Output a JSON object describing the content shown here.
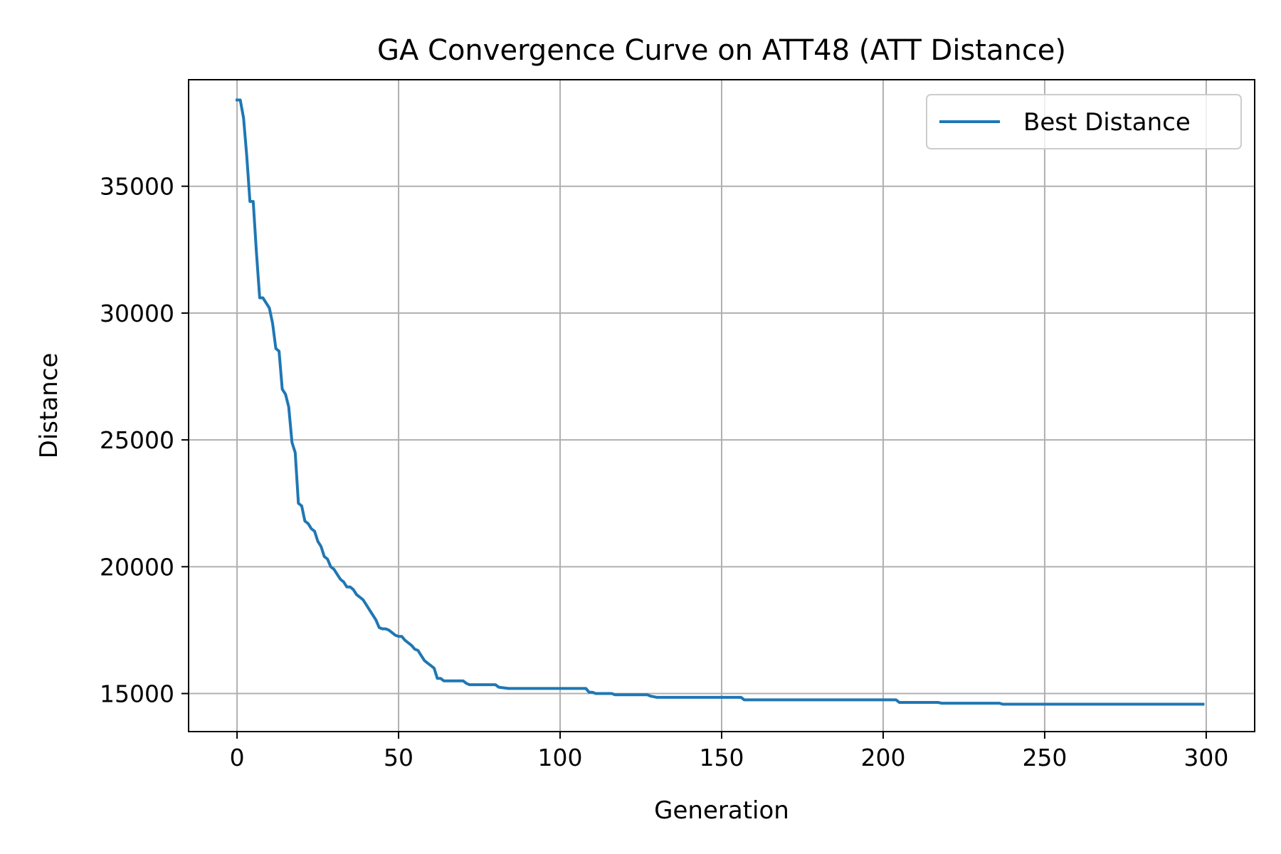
{
  "chart_data": {
    "type": "line",
    "title": "GA Convergence Curve on ATT48 (ATT Distance)",
    "xlabel": "Generation",
    "ylabel": "Distance",
    "xlim": [
      -15,
      315
    ],
    "ylim": [
      13500,
      39200
    ],
    "xticks": [
      0,
      50,
      100,
      150,
      200,
      250,
      300
    ],
    "yticks": [
      15000,
      20000,
      25000,
      30000,
      35000
    ],
    "grid": true,
    "legend_position": "top-right",
    "series": [
      {
        "name": "Best Distance",
        "color": "#1f77b4",
        "points": [
          [
            0,
            38400
          ],
          [
            1,
            38400
          ],
          [
            2,
            37700
          ],
          [
            3,
            36200
          ],
          [
            4,
            34400
          ],
          [
            5,
            34400
          ],
          [
            6,
            32400
          ],
          [
            7,
            30600
          ],
          [
            8,
            30600
          ],
          [
            9,
            30400
          ],
          [
            10,
            30200
          ],
          [
            11,
            29600
          ],
          [
            12,
            28600
          ],
          [
            13,
            28500
          ],
          [
            14,
            27000
          ],
          [
            15,
            26800
          ],
          [
            16,
            26300
          ],
          [
            17,
            24900
          ],
          [
            18,
            24500
          ],
          [
            19,
            22500
          ],
          [
            20,
            22400
          ],
          [
            21,
            21800
          ],
          [
            22,
            21700
          ],
          [
            23,
            21500
          ],
          [
            24,
            21400
          ],
          [
            25,
            21000
          ],
          [
            26,
            20800
          ],
          [
            27,
            20400
          ],
          [
            28,
            20300
          ],
          [
            29,
            20000
          ],
          [
            30,
            19900
          ],
          [
            31,
            19700
          ],
          [
            32,
            19500
          ],
          [
            33,
            19400
          ],
          [
            34,
            19200
          ],
          [
            35,
            19200
          ],
          [
            36,
            19100
          ],
          [
            37,
            18900
          ],
          [
            38,
            18800
          ],
          [
            39,
            18700
          ],
          [
            40,
            18500
          ],
          [
            41,
            18300
          ],
          [
            42,
            18100
          ],
          [
            43,
            17900
          ],
          [
            44,
            17600
          ],
          [
            45,
            17550
          ],
          [
            46,
            17550
          ],
          [
            47,
            17500
          ],
          [
            48,
            17400
          ],
          [
            49,
            17300
          ],
          [
            50,
            17250
          ],
          [
            51,
            17250
          ],
          [
            52,
            17100
          ],
          [
            53,
            17000
          ],
          [
            54,
            16900
          ],
          [
            55,
            16750
          ],
          [
            56,
            16700
          ],
          [
            57,
            16500
          ],
          [
            58,
            16300
          ],
          [
            59,
            16200
          ],
          [
            60,
            16100
          ],
          [
            61,
            16000
          ],
          [
            62,
            15600
          ],
          [
            63,
            15600
          ],
          [
            64,
            15500
          ],
          [
            65,
            15500
          ],
          [
            70,
            15500
          ],
          [
            71,
            15400
          ],
          [
            72,
            15350
          ],
          [
            80,
            15350
          ],
          [
            81,
            15250
          ],
          [
            84,
            15200
          ],
          [
            108,
            15200
          ],
          [
            109,
            15050
          ],
          [
            110,
            15050
          ],
          [
            111,
            15000
          ],
          [
            116,
            15000
          ],
          [
            117,
            14950
          ],
          [
            127,
            14950
          ],
          [
            128,
            14900
          ],
          [
            130,
            14850
          ],
          [
            156,
            14850
          ],
          [
            157,
            14750
          ],
          [
            204,
            14750
          ],
          [
            205,
            14650
          ],
          [
            217,
            14650
          ],
          [
            218,
            14620
          ],
          [
            236,
            14620
          ],
          [
            237,
            14580
          ],
          [
            299,
            14580
          ]
        ]
      }
    ]
  }
}
